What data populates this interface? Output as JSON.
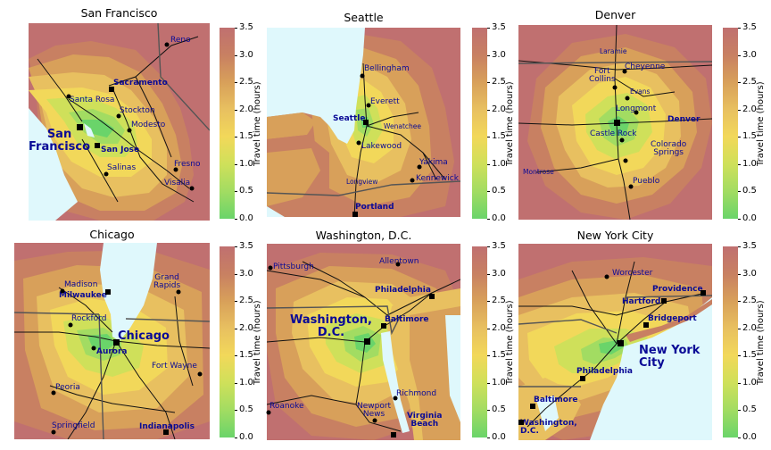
{
  "colorbar": {
    "label": "Travel time (hours)",
    "ticks": [
      "0.0",
      "0.5",
      "1.0",
      "1.5",
      "2.0",
      "2.5",
      "3.0",
      "3.5"
    ],
    "colors": [
      "#6ad46a",
      "#a2dc62",
      "#cfe05a",
      "#f2d85a",
      "#e8c060",
      "#d8a05a",
      "#c88062",
      "#c07070"
    ]
  },
  "maps": [
    {
      "title": "San Francisco",
      "cities": [
        {
          "name": "Reno",
          "style": "reg"
        },
        {
          "name": "Sacramento",
          "style": "bold"
        },
        {
          "name": "Santa Rosa",
          "style": "reg"
        },
        {
          "name": "Stockton",
          "style": "reg"
        },
        {
          "name": "San\nFrancisco",
          "style": "big"
        },
        {
          "name": "Modesto",
          "style": "reg"
        },
        {
          "name": "San Jose",
          "style": "bold"
        },
        {
          "name": "Fresno",
          "style": "reg"
        },
        {
          "name": "Salinas",
          "style": "reg"
        },
        {
          "name": "Visalia",
          "style": "reg"
        }
      ]
    },
    {
      "title": "Seattle",
      "cities": [
        {
          "name": "Bellingham",
          "style": "reg"
        },
        {
          "name": "Everett",
          "style": "reg"
        },
        {
          "name": "Seattle",
          "style": "bold"
        },
        {
          "name": "Wenatchee",
          "style": "small"
        },
        {
          "name": "Lakewood",
          "style": "reg"
        },
        {
          "name": "Yakima",
          "style": "reg"
        },
        {
          "name": "Kennewick",
          "style": "reg"
        },
        {
          "name": "Longview",
          "style": "small"
        },
        {
          "name": "Portland",
          "style": "bold"
        }
      ]
    },
    {
      "title": "Denver",
      "cities": [
        {
          "name": "Laramie",
          "style": "small"
        },
        {
          "name": "Cheyenne",
          "style": "reg"
        },
        {
          "name": "Fort\nCollins",
          "style": "reg"
        },
        {
          "name": "Evans",
          "style": "small"
        },
        {
          "name": "Longmont",
          "style": "reg"
        },
        {
          "name": "Denver",
          "style": "bold"
        },
        {
          "name": "Castle Rock",
          "style": "reg"
        },
        {
          "name": "Colorado\nSprings",
          "style": "reg"
        },
        {
          "name": "Montrose",
          "style": "small"
        },
        {
          "name": "Pueblo",
          "style": "reg"
        }
      ]
    },
    {
      "title": "Chicago",
      "cities": [
        {
          "name": "Madison",
          "style": "reg"
        },
        {
          "name": "Milwaukee",
          "style": "bold"
        },
        {
          "name": "Grand\nRapids",
          "style": "reg"
        },
        {
          "name": "Rockford",
          "style": "reg"
        },
        {
          "name": "Chicago",
          "style": "big"
        },
        {
          "name": "Aurora",
          "style": "bold"
        },
        {
          "name": "Fort Wayne",
          "style": "reg"
        },
        {
          "name": "Peoria",
          "style": "reg"
        },
        {
          "name": "Springfield",
          "style": "reg"
        },
        {
          "name": "Indianapolis",
          "style": "bold"
        }
      ]
    },
    {
      "title": "Washington, D.C.",
      "cities": [
        {
          "name": "Pittsburgh",
          "style": "reg"
        },
        {
          "name": "Allentown",
          "style": "reg"
        },
        {
          "name": "Philadelphia",
          "style": "bold"
        },
        {
          "name": "Washington,\nD.C.",
          "style": "big"
        },
        {
          "name": "Baltimore",
          "style": "bold"
        },
        {
          "name": "Richmond",
          "style": "reg"
        },
        {
          "name": "Roanoke",
          "style": "reg"
        },
        {
          "name": "Newport\nNews",
          "style": "reg"
        },
        {
          "name": "Virginia\nBeach",
          "style": "bold"
        }
      ]
    },
    {
      "title": "New York City",
      "cities": [
        {
          "name": "Worcester",
          "style": "reg"
        },
        {
          "name": "Providence",
          "style": "bold"
        },
        {
          "name": "Hartford",
          "style": "bold"
        },
        {
          "name": "Bridgeport",
          "style": "bold"
        },
        {
          "name": "New York\nCity",
          "style": "big"
        },
        {
          "name": "Philadelphia",
          "style": "bold"
        },
        {
          "name": "Baltimore",
          "style": "bold"
        },
        {
          "name": "Washington,\nD.C.",
          "style": "bold"
        }
      ]
    }
  ]
}
